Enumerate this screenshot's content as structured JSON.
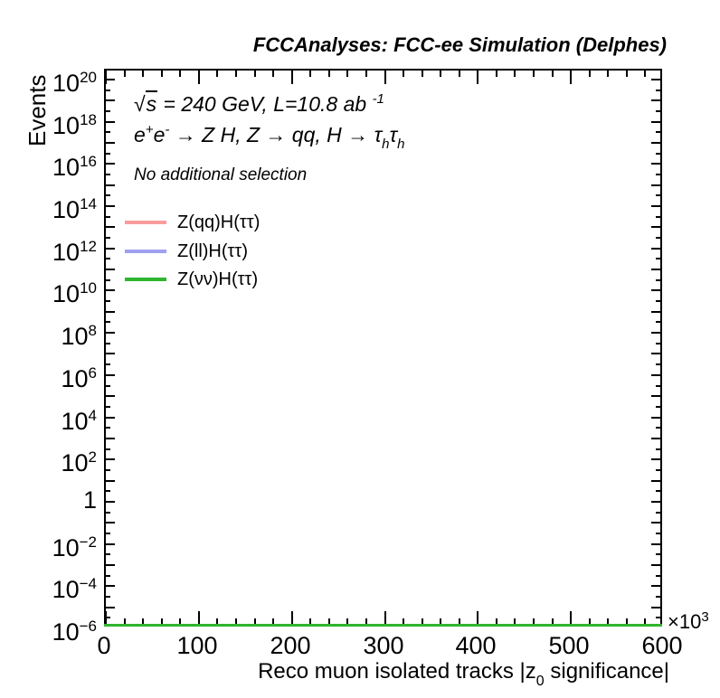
{
  "title": "FCCAnalyses: FCC-ee Simulation (Delphes)",
  "annotations": {
    "energy": {
      "sqrt": "√",
      "sqrt_arg": "s",
      "main": " = 240 GeV, L=10.8 ab",
      "sup": "-1"
    },
    "process_segments": [
      {
        "text": "e",
        "style": "normal"
      },
      {
        "text": "+",
        "style": "sup"
      },
      {
        "text": "e",
        "style": "normal"
      },
      {
        "text": "-",
        "style": "sup"
      },
      {
        "text": " → Z H, Z → qq, H → ",
        "style": "normal"
      },
      {
        "text": "τ",
        "style": "normal"
      },
      {
        "text": "h",
        "style": "sub"
      },
      {
        "text": "τ",
        "style": "normal"
      },
      {
        "text": "h",
        "style": "sub"
      }
    ],
    "selection": "No additional selection"
  },
  "legend": [
    {
      "label": "Z(qq)H(ττ)",
      "color": "#FA9C9C"
    },
    {
      "label": "Z(ll)H(ττ)",
      "color": "#A0A0F0"
    },
    {
      "label": "Z(νν)H(ττ)",
      "color": "#2FB52F"
    }
  ],
  "chart_data": {
    "type": "line",
    "title": "FCCAnalyses: FCC-ee Simulation (Delphes)",
    "ylabel": "Events",
    "xlabel_segments": {
      "pre": "Reco muon isolated tracks |z",
      "sub": "0",
      "post": " significance|"
    },
    "x_axis": {
      "min": 0,
      "max": 600,
      "units_note": "axis values scaled by 10^3",
      "multiplier": "×10",
      "multiplier_exp": "3",
      "tick_values": [
        0,
        100,
        200,
        300,
        400,
        500,
        600
      ],
      "tick_labels": [
        "0",
        "100",
        "200",
        "300",
        "400",
        "500",
        "600"
      ],
      "minor_step": 20
    },
    "y_axis": {
      "scale": "log",
      "min_exp": -6,
      "max_exp": 20,
      "tick_labels": [
        {
          "e": 20,
          "base": "10",
          "exp": "20"
        },
        {
          "e": 18,
          "base": "10",
          "exp": "18"
        },
        {
          "e": 16,
          "base": "10",
          "exp": "16"
        },
        {
          "e": 14,
          "base": "10",
          "exp": "14"
        },
        {
          "e": 12,
          "base": "10",
          "exp": "12"
        },
        {
          "e": 10,
          "base": "10",
          "exp": "10"
        },
        {
          "e": 8,
          "base": "10",
          "exp": "8"
        },
        {
          "e": 6,
          "base": "10",
          "exp": "6"
        },
        {
          "e": 4,
          "base": "10",
          "exp": "4"
        },
        {
          "e": 2,
          "base": "10",
          "exp": "2"
        },
        {
          "e": 0,
          "base": "1",
          "exp": ""
        },
        {
          "e": -2,
          "base": "10",
          "exp": "−2"
        },
        {
          "e": -4,
          "base": "10",
          "exp": "−4"
        },
        {
          "e": -6,
          "base": "10",
          "exp": "−6"
        }
      ]
    },
    "grid": false,
    "legend_position": "upper-left inside plot",
    "series": [
      {
        "name": "Z(qq)H(ττ)",
        "color": "#FA9C9C",
        "visible_in_plot": false,
        "values_note": "no entries above plot minimum; not visible"
      },
      {
        "name": "Z(ll)H(ττ)",
        "color": "#A0A0F0",
        "visible_in_plot": false,
        "values_note": "no entries above plot minimum; not visible"
      },
      {
        "name": "Z(νν)H(ττ)",
        "color": "#2FB52F",
        "visible_in_plot": true,
        "values_note": "flat histogram line along bottom edge at plot minimum (~1e-6) spanning full x range 0–600×10^3"
      }
    ]
  }
}
